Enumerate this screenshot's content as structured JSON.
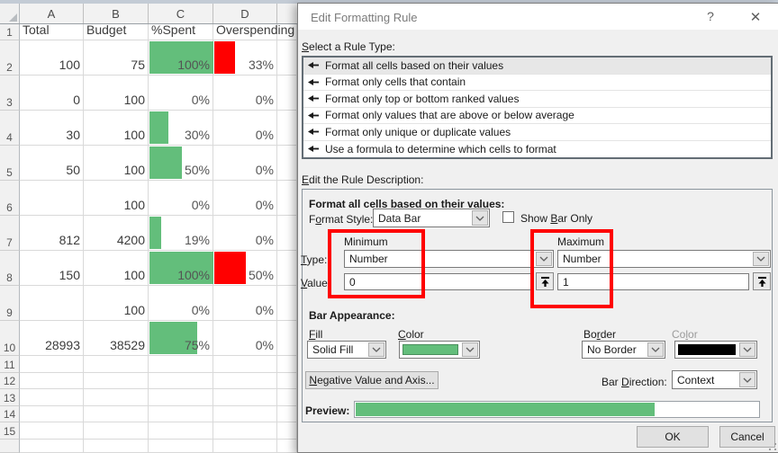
{
  "spreadsheet": {
    "columns": [
      "A",
      "B",
      "C",
      "D"
    ],
    "row1_headers": [
      "Total",
      "Budget",
      "%Spent",
      "Overspending"
    ],
    "bar_green": "#63be7b",
    "bar_red": "#ff0000",
    "rows": [
      {
        "n": 2,
        "total": "100",
        "budget": "75",
        "spent": "100%",
        "spent_bar": 100,
        "over": "33%",
        "over_bar": 33
      },
      {
        "n": 3,
        "total": "0",
        "budget": "100",
        "spent": "0%",
        "spent_bar": 0,
        "over": "0%",
        "over_bar": 0
      },
      {
        "n": 4,
        "total": "30",
        "budget": "100",
        "spent": "30%",
        "spent_bar": 30,
        "over": "0%",
        "over_bar": 0
      },
      {
        "n": 5,
        "total": "50",
        "budget": "100",
        "spent": "50%",
        "spent_bar": 50,
        "over": "0%",
        "over_bar": 0
      },
      {
        "n": 6,
        "total": "",
        "budget": "100",
        "spent": "0%",
        "spent_bar": 0,
        "over": "0%",
        "over_bar": 0
      },
      {
        "n": 7,
        "total": "812",
        "budget": "4200",
        "spent": "19%",
        "spent_bar": 19,
        "over": "0%",
        "over_bar": 0
      },
      {
        "n": 8,
        "total": "150",
        "budget": "100",
        "spent": "100%",
        "spent_bar": 100,
        "over": "50%",
        "over_bar": 50
      },
      {
        "n": 9,
        "total": "",
        "budget": "100",
        "spent": "0%",
        "spent_bar": 0,
        "over": "0%",
        "over_bar": 0
      },
      {
        "n": 10,
        "total": "28993",
        "budget": "38529",
        "spent": "75%",
        "spent_bar": 75,
        "over": "0%",
        "over_bar": 0
      }
    ],
    "empty_rows": [
      11,
      12,
      13,
      14,
      15
    ]
  },
  "dialog": {
    "title": "Edit Formatting Rule",
    "help_icon": "?",
    "close_icon": "✕",
    "rule_type_label": {
      "pre": "",
      "u": "S",
      "post": "elect a Rule Type:"
    },
    "rule_types": [
      "Format all cells based on their values",
      "Format only cells that contain",
      "Format only top or bottom ranked values",
      "Format only values that are above or below average",
      "Format only unique or duplicate values",
      "Use a formula to determine which cells to format"
    ],
    "selected_rule": "Format all cells based on their values",
    "description_label": {
      "pre": "",
      "u": "E",
      "post": "dit the Rule Description:"
    },
    "format_all_label": "Format all cells based on their values:",
    "format_style_label": {
      "pre": "F",
      "u": "o",
      "post": "rmat Style:"
    },
    "format_style_value": "Data Bar",
    "show_bar_only_label": {
      "pre": "Show ",
      "u": "B",
      "post": "ar Only"
    },
    "show_bar_only_checked": false,
    "minimum_label": "Minimum",
    "maximum_label": "Maximum",
    "type_label": {
      "pre": "",
      "u": "T",
      "post": "ype:"
    },
    "value_label": {
      "pre": "",
      "u": "V",
      "post": "alue:"
    },
    "min_type": "Number",
    "max_type": "Number",
    "min_value": "0",
    "max_value": "1",
    "bar_appearance_label": "Bar Appearance:",
    "fill_label": {
      "pre": "",
      "u": "F",
      "post": "ill"
    },
    "fill_value": "Solid Fill",
    "color_label": {
      "pre": "",
      "u": "C",
      "post": "olor"
    },
    "fill_color": "#63be7b",
    "border_label": {
      "pre": "Bo",
      "u": "r",
      "post": "der"
    },
    "border_value": "No Border",
    "border_color_label": {
      "pre": "Co",
      "u": "l",
      "post": "or"
    },
    "border_color": "#000000",
    "negative_button": {
      "pre": "",
      "u": "N",
      "post": "egative Value and Axis..."
    },
    "bar_direction_label": {
      "pre": "Bar ",
      "u": "D",
      "post": "irection:"
    },
    "bar_direction_value": "Context",
    "preview_label": "Preview:",
    "preview_percent": 74,
    "ok_label": "OK",
    "cancel_label": "Cancel",
    "highlight_color": "#ff0000"
  }
}
